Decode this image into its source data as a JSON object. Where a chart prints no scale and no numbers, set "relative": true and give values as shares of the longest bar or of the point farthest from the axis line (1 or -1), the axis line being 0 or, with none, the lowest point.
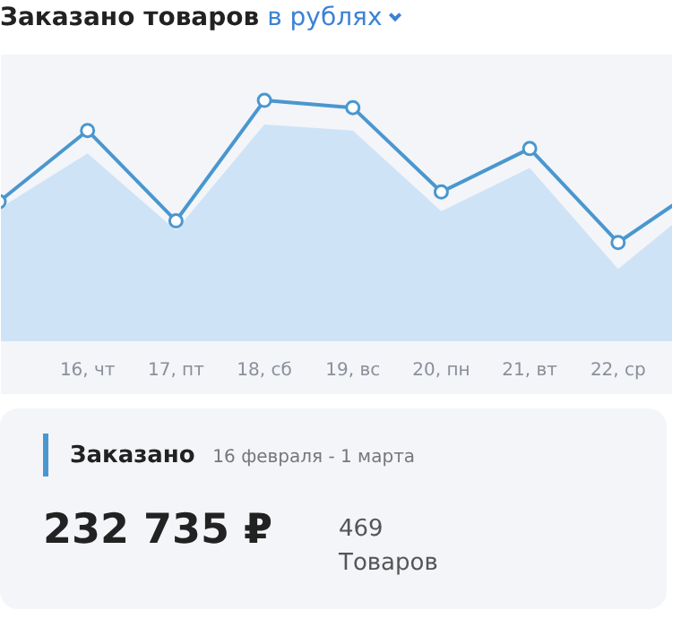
{
  "chart_data": {
    "type": "line",
    "title": "Заказано товаров",
    "subtitle": "в рублях",
    "relative": true,
    "categories": [
      null,
      "16, чт",
      "17, пт",
      "18, сб",
      "19, вс",
      "20, пн",
      "21, вт",
      "22, ср",
      null
    ],
    "series": [
      {
        "type": "area",
        "color": "#cfe3f6",
        "values": [
          0.55,
          0.78,
          0.46,
          0.9,
          0.875,
          0.54,
          0.72,
          0.3,
          0.6
        ]
      },
      {
        "color": "#4a97cf",
        "marker": "circle",
        "values": [
          0.58,
          0.875,
          0.5,
          1.0,
          0.97,
          0.62,
          0.8,
          0.41,
          0.66
        ]
      }
    ],
    "annotations": [
      "Заказано",
      "16 февраля - 1 марта",
      "232 735 ₽",
      "469",
      "Товаров"
    ]
  }
}
